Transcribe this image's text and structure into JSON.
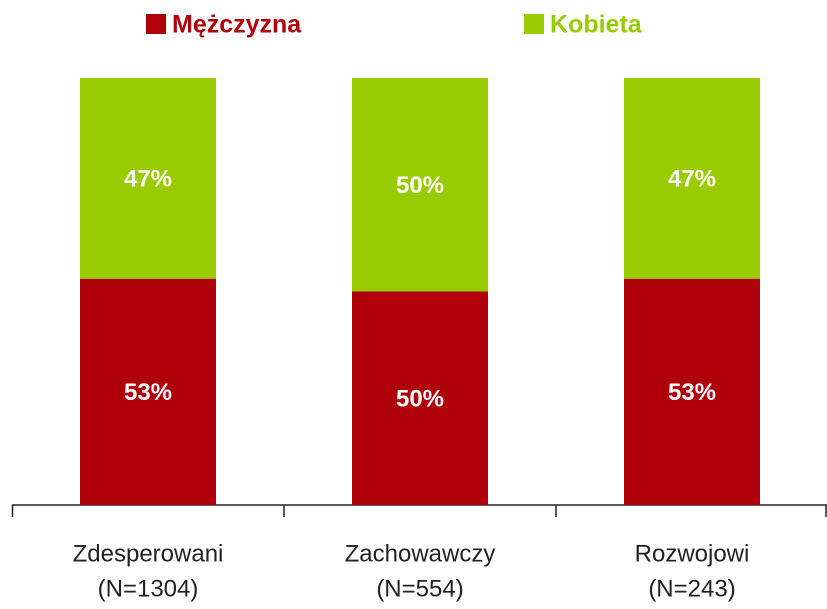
{
  "chart_data": {
    "type": "stacked_bar",
    "categories": [
      [
        "Zdesperowani",
        "(N=1304)"
      ],
      [
        "Zachowawczy",
        "(N=554)"
      ],
      [
        "Rozwojowi",
        "(N=243)"
      ]
    ],
    "series": [
      {
        "name": "Mężczyzna",
        "color": "#b0000a",
        "values": [
          53,
          50,
          53
        ],
        "value_labels": [
          "53%",
          "50%",
          "53%"
        ]
      },
      {
        "name": "Kobieta",
        "color": "#99cc00",
        "values": [
          47,
          50,
          47
        ],
        "value_labels": [
          "47%",
          "50%",
          "47%"
        ]
      }
    ],
    "legend": "top"
  }
}
